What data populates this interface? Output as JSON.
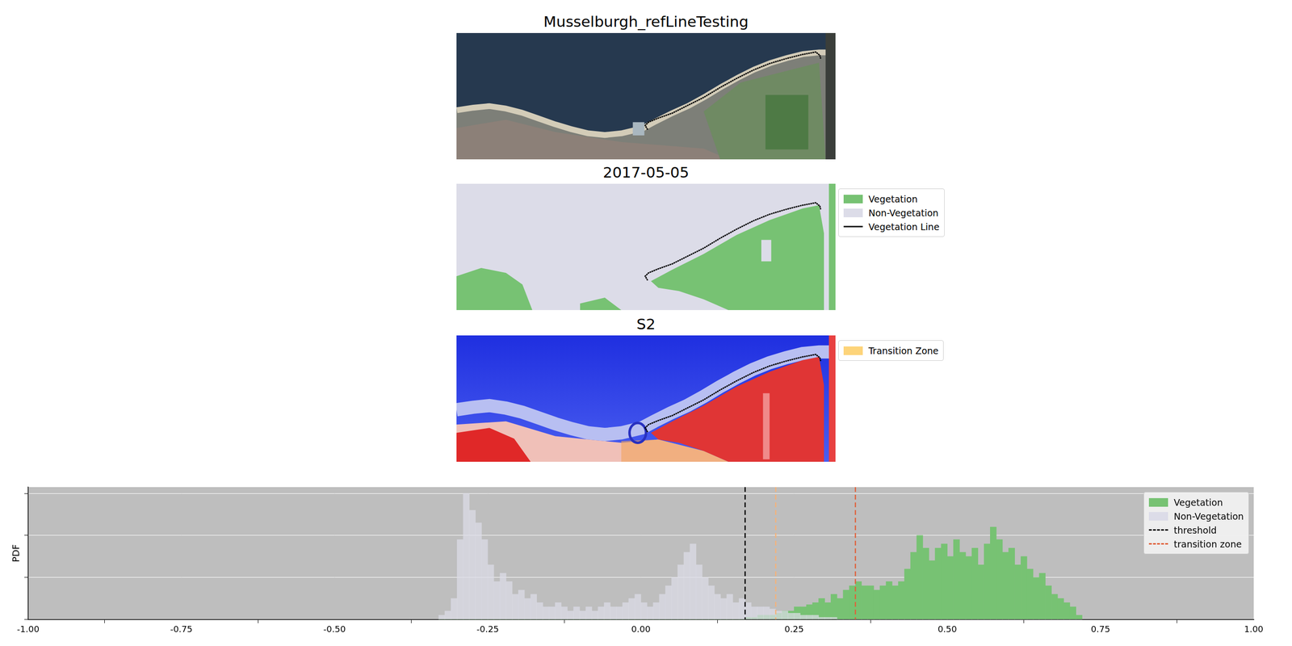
{
  "figure": {
    "panels": [
      {
        "title": "Musselburgh_refLineTesting"
      },
      {
        "title": "2017-05-05",
        "legend": [
          {
            "name": "Vegetation",
            "color": "#77c273",
            "marker": "patch"
          },
          {
            "name": "Non-Vegetation",
            "color": "#dcdce8",
            "marker": "patch"
          },
          {
            "name": "Vegetation Line",
            "color": "#000000",
            "marker": "line"
          }
        ]
      },
      {
        "title": "S2",
        "legend": [
          {
            "name": "Transition Zone",
            "color": "#fdd47a",
            "marker": "patch"
          }
        ]
      }
    ]
  },
  "chart_data": {
    "type": "histogram",
    "y_label": "PDF",
    "bins": [
      -0.33,
      -0.32,
      -0.31,
      -0.3,
      -0.29,
      -0.28,
      -0.27,
      -0.26,
      -0.25,
      -0.24,
      -0.23,
      -0.22,
      -0.21,
      -0.2,
      -0.19,
      -0.18,
      -0.17,
      -0.16,
      -0.15,
      -0.14,
      -0.13,
      -0.12,
      -0.11,
      -0.1,
      -0.09,
      -0.08,
      -0.07,
      -0.06,
      -0.05,
      -0.04,
      -0.03,
      -0.02,
      -0.01,
      0,
      0.01,
      0.02,
      0.03,
      0.04,
      0.05,
      0.06,
      0.07,
      0.08,
      0.09,
      0.1,
      0.11,
      0.12,
      0.13,
      0.14,
      0.15,
      0.16,
      0.17,
      0.18,
      0.19,
      0.2,
      0.21,
      0.22,
      0.23,
      0.24,
      0.25,
      0.26,
      0.27,
      0.28,
      0.29,
      0.3,
      0.31,
      0.32,
      0.33,
      0.34,
      0.35,
      0.36,
      0.37,
      0.38,
      0.39,
      0.4,
      0.41,
      0.42,
      0.43,
      0.44,
      0.45,
      0.46,
      0.47,
      0.48,
      0.49,
      0.5,
      0.51,
      0.52,
      0.53,
      0.54,
      0.55,
      0.56,
      0.57,
      0.58,
      0.59,
      0.6,
      0.61,
      0.62,
      0.63,
      0.64,
      0.65,
      0.66,
      0.67,
      0.68,
      0.69,
      0.7,
      0.71,
      0.72
    ],
    "series": [
      {
        "name": "Vegetation",
        "color": "#77c273",
        "values": [
          0,
          0,
          0,
          0,
          0,
          0,
          0,
          0,
          0,
          0,
          0,
          0,
          0,
          0,
          0,
          0,
          0,
          0,
          0,
          0,
          0,
          0,
          0,
          0,
          0,
          0,
          0,
          0,
          0,
          0,
          0,
          0,
          0,
          0,
          0,
          0,
          0,
          0,
          0,
          0,
          0,
          0,
          0,
          0,
          0,
          0,
          0,
          0,
          0,
          0,
          0.05,
          0.05,
          0.1,
          0.1,
          0.1,
          0.15,
          0.2,
          0.2,
          0.3,
          0.3,
          0.35,
          0.4,
          0.5,
          0.4,
          0.6,
          0.5,
          0.7,
          0.8,
          0.9,
          0.8,
          0.8,
          0.7,
          0.8,
          0.9,
          0.8,
          0.9,
          1.2,
          1.6,
          2.0,
          1.7,
          1.4,
          1.7,
          1.8,
          1.5,
          1.9,
          1.6,
          1.5,
          1.7,
          1.3,
          1.8,
          2.2,
          1.9,
          1.6,
          1.7,
          1.3,
          1.5,
          1.2,
          1.0,
          1.1,
          0.8,
          0.6,
          0.5,
          0.4,
          0.3,
          0.1
        ]
      },
      {
        "name": "Non-Vegetation",
        "color": "#dcdce8",
        "values": [
          0.1,
          0.2,
          0.5,
          1.9,
          3.0,
          2.6,
          2.3,
          1.9,
          1.3,
          0.9,
          1.1,
          0.9,
          0.6,
          0.7,
          0.5,
          0.6,
          0.4,
          0.3,
          0.3,
          0.4,
          0.3,
          0.2,
          0.3,
          0.2,
          0.3,
          0.2,
          0.3,
          0.4,
          0.3,
          0.3,
          0.4,
          0.5,
          0.6,
          0.4,
          0.3,
          0.4,
          0.6,
          0.8,
          1.0,
          1.3,
          1.6,
          1.8,
          1.3,
          1.0,
          0.8,
          0.6,
          0.5,
          0.6,
          0.4,
          0.5,
          0.4,
          0.3,
          0.3,
          0.3,
          0.25,
          0.2,
          0.2,
          0.15,
          0.15,
          0.1,
          0.1,
          0.1,
          0.05,
          0.05,
          0.05,
          0,
          0,
          0,
          0,
          0,
          0,
          0,
          0,
          0,
          0,
          0,
          0,
          0,
          0,
          0,
          0,
          0,
          0,
          0,
          0,
          0,
          0,
          0,
          0,
          0,
          0,
          0,
          0,
          0,
          0,
          0,
          0,
          0,
          0,
          0,
          0,
          0,
          0,
          0,
          0
        ]
      }
    ],
    "vlines": [
      {
        "name": "threshold",
        "values": [
          0.17
        ],
        "color": "#000000",
        "colors": [
          "#000000"
        ],
        "line_style": "dashed"
      },
      {
        "name": "transition zone",
        "values": [
          0.22,
          0.35
        ],
        "color": "#e0603a",
        "colors": [
          "#f5b27a",
          "#e0603a"
        ],
        "line_style": "dashed"
      }
    ],
    "xlim": [
      -1,
      1
    ],
    "xticks": [
      {
        "value": -1,
        "label": "-1.00"
      },
      {
        "value": -0.75,
        "label": "-0.75"
      },
      {
        "value": -0.5,
        "label": "-0.50"
      },
      {
        "value": -0.25,
        "label": "-0.25"
      },
      {
        "value": 0,
        "label": "0.00"
      },
      {
        "value": 0.25,
        "label": "0.25"
      },
      {
        "value": 0.5,
        "label": "0.50"
      },
      {
        "value": 0.75,
        "label": "0.75"
      },
      {
        "value": 1,
        "label": "1.00"
      }
    ],
    "ylim": [
      0,
      3.15
    ],
    "yticks": [
      0,
      1,
      2,
      3
    ],
    "grid": true,
    "tick_labels": "x",
    "legend": "upper right"
  }
}
